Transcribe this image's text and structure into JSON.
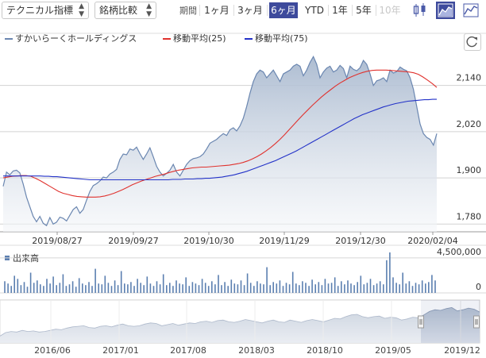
{
  "toolbar": {
    "indicator_select": "テクニカル指標",
    "compare_select": "銘柄比較",
    "period_label": "期間",
    "periods": [
      "1ヶ月",
      "3ヶ月",
      "6ヶ月",
      "YTD",
      "1年",
      "5年",
      "10年"
    ],
    "active_period": "6ヶ月",
    "disabled_period": "10年",
    "tools": [
      "candlestick-icon",
      "area-chart-icon",
      "line-chart-icon"
    ]
  },
  "legend": {
    "price": "すかいらーくホールディングス",
    "ma25": "移動平均(25)",
    "ma75": "移動平均(75)"
  },
  "colors": {
    "price_line": "#6a86b0",
    "ma25": "#e0322e",
    "ma75": "#2332c8",
    "volume": "#5b7fb0",
    "active": "#3d4a9c"
  },
  "volume_label": "出来高",
  "chart_data": {
    "type": "area",
    "title": "",
    "xlabel": "",
    "ylabel": "",
    "x_ticks": [
      "2019/08/27",
      "2019/09/27",
      "2019/10/30",
      "2019/11/29",
      "2019/12/30",
      "2020/02/04"
    ],
    "y_ticks": [
      "2,140",
      "2,020",
      "1,900",
      "1,780"
    ],
    "ylim": [
      1760,
      2230
    ],
    "grid": true,
    "price": [
      1878,
      1915,
      1908,
      1918,
      1920,
      1913,
      1884,
      1850,
      1825,
      1800,
      1786,
      1800,
      1782,
      1776,
      1797,
      1780,
      1785,
      1798,
      1795,
      1788,
      1803,
      1818,
      1825,
      1808,
      1818,
      1842,
      1865,
      1880,
      1885,
      1892,
      1902,
      1900,
      1910,
      1915,
      1922,
      1948,
      1962,
      1960,
      1975,
      1972,
      1980,
      1963,
      1948,
      1962,
      1978,
      1955,
      1930,
      1915,
      1905,
      1912,
      1920,
      1935,
      1915,
      1905,
      1920,
      1935,
      1945,
      1950,
      1952,
      1955,
      1962,
      1975,
      1990,
      1995,
      2000,
      2008,
      2015,
      2010,
      2025,
      2030,
      2022,
      2035,
      2055,
      2085,
      2120,
      2150,
      2170,
      2180,
      2175,
      2160,
      2170,
      2180,
      2165,
      2150,
      2170,
      2175,
      2180,
      2190,
      2195,
      2190,
      2165,
      2180,
      2200,
      2215,
      2195,
      2160,
      2175,
      2185,
      2190,
      2175,
      2180,
      2192,
      2184,
      2160,
      2190,
      2182,
      2178,
      2186,
      2205,
      2195,
      2170,
      2140,
      2152,
      2155,
      2160,
      2150,
      2180,
      2172,
      2176,
      2188,
      2182,
      2178,
      2160,
      2130,
      2085,
      2040,
      2015,
      2005,
      2000,
      1985,
      2015
    ],
    "ma25": [
      1900,
      1902,
      1904,
      1905,
      1906,
      1906,
      1904,
      1899,
      1893,
      1886,
      1879,
      1872,
      1865,
      1860,
      1857,
      1854,
      1852,
      1851,
      1850,
      1850,
      1850,
      1851,
      1853,
      1856,
      1860,
      1865,
      1870,
      1876,
      1882,
      1887,
      1892,
      1896,
      1900,
      1904,
      1907,
      1910,
      1914,
      1917,
      1920,
      1922,
      1924,
      1926,
      1927,
      1928,
      1928,
      1929,
      1930,
      1931,
      1932,
      1933,
      1935,
      1937,
      1940,
      1944,
      1949,
      1955,
      1962,
      1970,
      1979,
      1989,
      2000,
      2012,
      2025,
      2038,
      2051,
      2064,
      2076,
      2088,
      2099,
      2110,
      2120,
      2129,
      2138,
      2146,
      2153,
      2160,
      2165,
      2170,
      2174,
      2177,
      2179,
      2180,
      2180,
      2180,
      2179,
      2178,
      2177,
      2176,
      2175,
      2173,
      2169,
      2162,
      2154,
      2145,
      2135
    ],
    "ma75": [
      1905,
      1905,
      1905,
      1905,
      1905,
      1905,
      1905,
      1905,
      1905,
      1905,
      1904,
      1904,
      1903,
      1903,
      1902,
      1901,
      1900,
      1899,
      1898,
      1897,
      1896,
      1895,
      1895,
      1895,
      1895,
      1895,
      1895,
      1895,
      1895,
      1895,
      1895,
      1895,
      1895,
      1895,
      1895,
      1895,
      1895,
      1895,
      1895,
      1895,
      1895,
      1896,
      1896,
      1896,
      1897,
      1897,
      1897,
      1898,
      1898,
      1899,
      1899,
      1900,
      1901,
      1902,
      1904,
      1906,
      1908,
      1911,
      1914,
      1917,
      1921,
      1925,
      1929,
      1933,
      1937,
      1941,
      1945,
      1950,
      1955,
      1960,
      1965,
      1970,
      1976,
      1982,
      1988,
      1994,
      2000,
      2006,
      2012,
      2018,
      2024,
      2030,
      2036,
      2042,
      2048,
      2054,
      2059,
      2064,
      2068,
      2072,
      2076,
      2080,
      2084,
      2087,
      2090,
      2093,
      2095,
      2097,
      2099,
      2100,
      2101,
      2102,
      2103,
      2103,
      2104,
      2104
    ],
    "volume": {
      "label": "出来高",
      "y_ticks": [
        "4,500,000",
        "0"
      ],
      "ylim": [
        0,
        5200000
      ],
      "values": [
        1500000,
        1200000,
        900000,
        2200000,
        1800000,
        1000000,
        1400000,
        800000,
        2600000,
        1300000,
        1600000,
        1100000,
        900000,
        1800000,
        1200000,
        2100000,
        1000000,
        1300000,
        2400000,
        900000,
        1100000,
        1500000,
        800000,
        1900000,
        1200000,
        1000000,
        1400000,
        900000,
        3100000,
        1200000,
        1100000,
        2200000,
        1300000,
        900000,
        1600000,
        1000000,
        2800000,
        1200000,
        1100000,
        1400000,
        900000,
        1800000,
        1300000,
        1000000,
        2100000,
        1200000,
        900000,
        1500000,
        1100000,
        2400000,
        1000000,
        1300000,
        900000,
        1600000,
        1200000,
        1100000,
        2000000,
        900000,
        1400000,
        1200000,
        1000000,
        1800000,
        1300000,
        900000,
        1500000,
        1100000,
        2300000,
        1000000,
        1400000,
        900000,
        1700000,
        1200000,
        1100000,
        1600000,
        1000000,
        2500000,
        1300000,
        900000,
        1500000,
        1200000,
        1100000,
        3300000,
        1000000,
        1400000,
        1200000,
        1600000,
        900000,
        1300000,
        1100000,
        2700000,
        1200000,
        1000000,
        1500000,
        1300000,
        900000,
        1700000,
        1100000,
        1400000,
        1000000,
        1800000,
        1200000,
        1300000,
        2000000,
        900000,
        1500000,
        1100000,
        1600000,
        1200000,
        1000000,
        1400000,
        2200000,
        1100000,
        1300000,
        1800000,
        1000000,
        1200000,
        1500000,
        1100000,
        4200000,
        5200000,
        2000000,
        1300000,
        1100000,
        2600000,
        1200000,
        1500000,
        900000,
        1300000,
        1100000,
        1600000,
        1200000,
        1400000,
        2300000,
        1600000
      ]
    },
    "navigator": {
      "x_ticks": [
        "2016/06",
        "2017/01",
        "2017/08",
        "2018/03",
        "2018/10",
        "2019/05",
        "2019/12"
      ],
      "values": [
        1620,
        1680,
        1700,
        1690,
        1720,
        1700,
        1710,
        1690,
        1700,
        1720,
        1740,
        1730,
        1760,
        1780,
        1790,
        1800,
        1770,
        1760,
        1790,
        1800,
        1780,
        1810,
        1830,
        1800,
        1790,
        1800,
        1830,
        1850,
        1840,
        1800,
        1820,
        1840,
        1810,
        1830,
        1850,
        1840,
        1870,
        1880,
        1860,
        1890,
        1900,
        1870,
        1860,
        1880,
        1910,
        1890,
        1870,
        1850,
        1880,
        1900,
        1870,
        1860,
        1900,
        1880,
        1860,
        1890,
        1910,
        1890,
        1870,
        1900,
        1930,
        1920,
        1960,
        1990,
        2000,
        1960,
        1940,
        1960,
        1970,
        1930,
        1950,
        1940,
        1900,
        1920,
        1950,
        1940,
        1990,
        2050,
        2080,
        2070,
        2100,
        2120,
        2060,
        2080,
        2110,
        2090,
        2040
      ]
    }
  }
}
